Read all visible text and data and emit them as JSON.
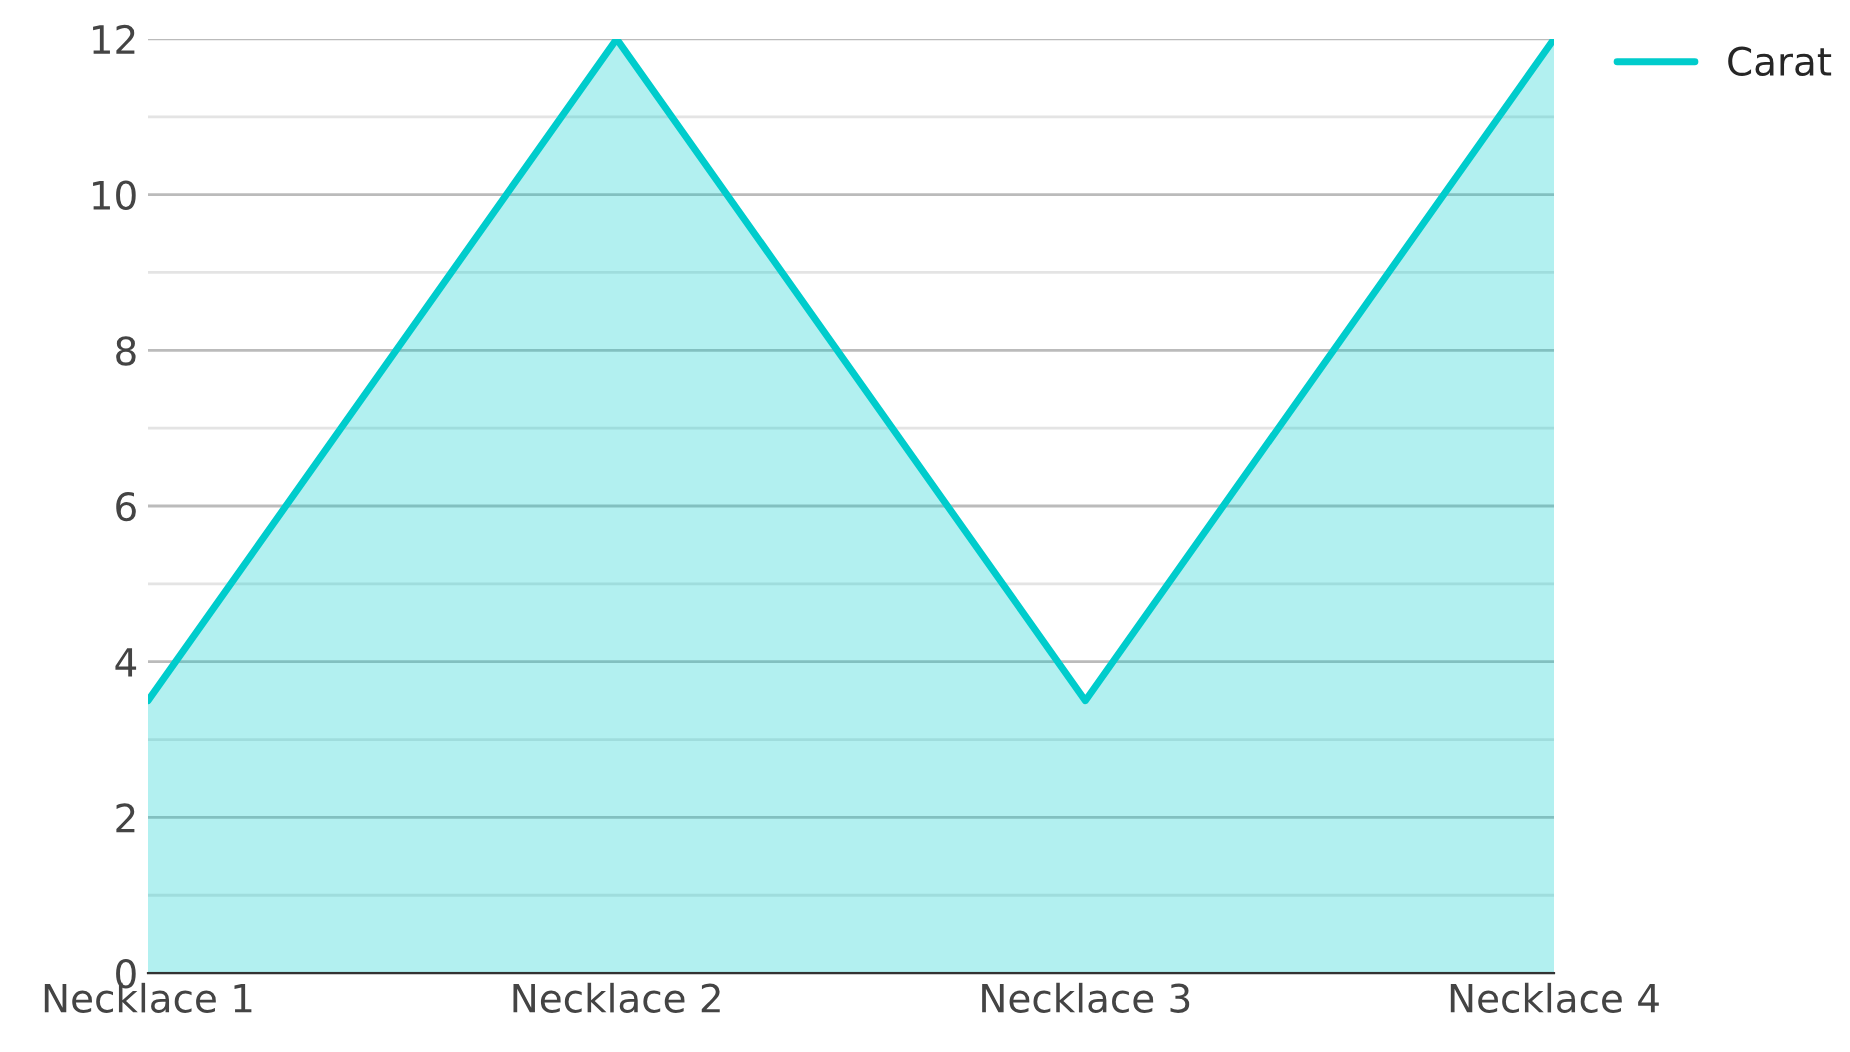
{
  "chart_data": {
    "type": "area",
    "categories": [
      "Necklace 1",
      "Necklace 2",
      "Necklace 3",
      "Necklace 4"
    ],
    "series": [
      {
        "name": "Carat",
        "color": "#00cccc",
        "values": [
          3.5,
          12,
          3.5,
          12
        ]
      }
    ],
    "ylim": [
      0,
      12
    ],
    "yticks": [
      0,
      {
        "value": 1,
        "label": null
      },
      2,
      {
        "value": 3,
        "label": null
      },
      4,
      {
        "value": 5,
        "label": null
      },
      6,
      {
        "value": 7,
        "label": null
      },
      8,
      {
        "value": 9,
        "label": null
      },
      10,
      {
        "value": 11,
        "label": null
      },
      12
    ],
    "grid": "y",
    "legend": "top right"
  }
}
